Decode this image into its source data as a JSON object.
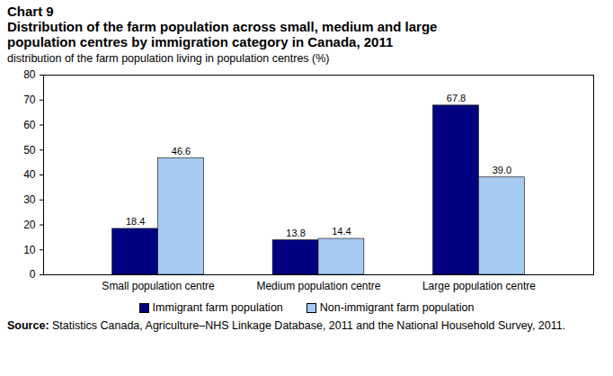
{
  "chart_data": {
    "type": "bar",
    "chart_number": "Chart 9",
    "title": "Distribution of the farm population across small, medium and large population centres by immigration category in Canada, 2011",
    "subtitle": "distribution of the farm population living in population centres (%)",
    "categories": [
      "Small population centre",
      "Medium population centre",
      "Large population centre"
    ],
    "series": [
      {
        "name": "Immigrant farm population",
        "color": "#000080",
        "values": [
          18.4,
          13.8,
          67.8
        ],
        "value_labels": [
          "18.4",
          "13.8",
          "67.8"
        ]
      },
      {
        "name": "Non-immigrant farm population",
        "color": "#a6caf0",
        "values": [
          46.6,
          14.4,
          39.0
        ],
        "value_labels": [
          "46.6",
          "14.4",
          "39.0"
        ]
      }
    ],
    "ylim": [
      0,
      80
    ],
    "yticks": [
      0,
      10,
      20,
      30,
      40,
      50,
      60,
      70,
      80
    ],
    "grid": false,
    "legend": "bottom",
    "data_labels": true,
    "source_label": "Source:",
    "source": "Statistics Canada, Agriculture–NHS Linkage Database, 2011 and the National Household Survey, 2011."
  }
}
